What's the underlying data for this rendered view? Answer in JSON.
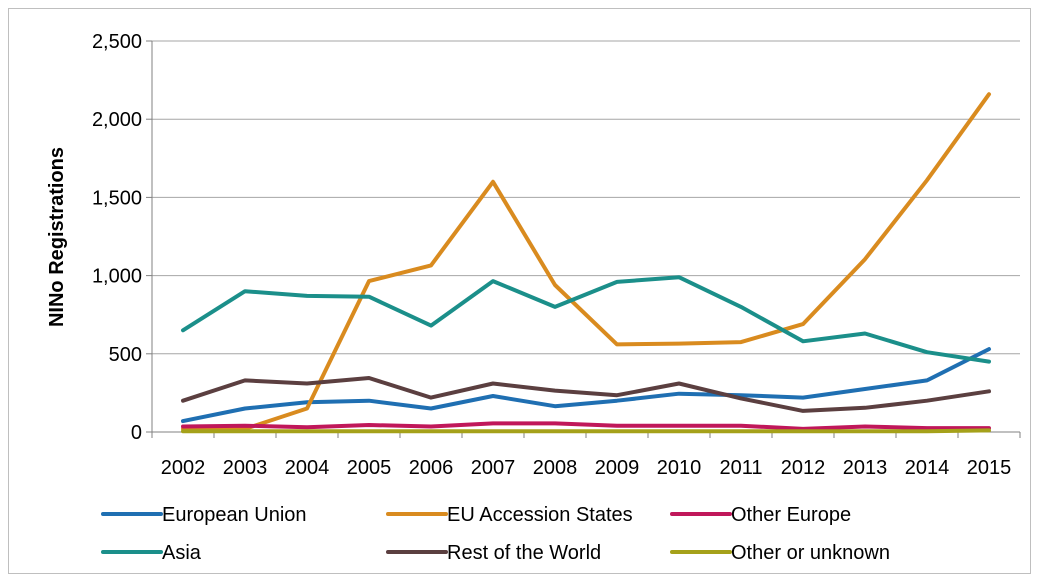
{
  "chart_data": {
    "type": "line",
    "title": "",
    "xlabel": "",
    "ylabel": "NINo Registrations",
    "ylim": [
      0,
      2500
    ],
    "yticks": [
      "0",
      "500",
      "1,000",
      "1,500",
      "2,000",
      "2,500"
    ],
    "grid": true,
    "legend_position": "bottom",
    "categories": [
      "2002",
      "2003",
      "2004",
      "2005",
      "2006",
      "2007",
      "2008",
      "2009",
      "2010",
      "2011",
      "2012",
      "2013",
      "2014",
      "2015"
    ],
    "series": [
      {
        "name": "European Union",
        "color": "#1f6fb2",
        "values": [
          70,
          150,
          190,
          200,
          150,
          230,
          165,
          200,
          245,
          235,
          220,
          275,
          330,
          530
        ]
      },
      {
        "name": "EU Accession States",
        "color": "#d98b1f",
        "values": [
          20,
          20,
          150,
          965,
          1065,
          1600,
          940,
          560,
          565,
          575,
          690,
          1105,
          1610,
          2160
        ]
      },
      {
        "name": "Other Europe",
        "color": "#c0175a",
        "values": [
          35,
          40,
          30,
          45,
          35,
          55,
          55,
          40,
          40,
          40,
          20,
          35,
          25,
          25
        ]
      },
      {
        "name": "Asia",
        "color": "#1b8f8a",
        "values": [
          650,
          900,
          870,
          865,
          680,
          965,
          800,
          960,
          990,
          800,
          580,
          630,
          510,
          450
        ]
      },
      {
        "name": "Rest of the World",
        "color": "#5b3f40",
        "values": [
          200,
          330,
          310,
          345,
          220,
          310,
          265,
          235,
          310,
          215,
          135,
          155,
          200,
          260
        ]
      },
      {
        "name": "Other or unknown",
        "color": "#a5a11a",
        "values": [
          5,
          5,
          5,
          5,
          5,
          5,
          5,
          5,
          5,
          5,
          5,
          5,
          5,
          10
        ]
      }
    ]
  }
}
